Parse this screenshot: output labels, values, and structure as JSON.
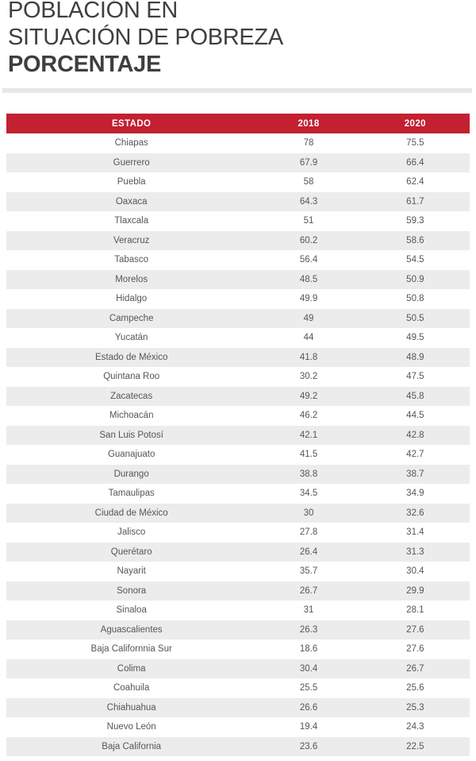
{
  "title": {
    "line1": "POBLACIÓN EN",
    "line2": "SITUACIÓN DE POBREZA",
    "line3": "PORCENTAJE"
  },
  "colors": {
    "header_bg": "#c32031",
    "header_text": "#ffffff",
    "stripe": "#ececec",
    "cell_text": "#55565a",
    "title_color": "#3f3f3f",
    "divider": "#e8e7e4"
  },
  "chart_data": {
    "type": "table",
    "title": "POBLACIÓN EN SITUACIÓN DE POBREZA — PORCENTAJE",
    "columns": [
      "ESTADO",
      "2018",
      "2020"
    ],
    "rows": [
      [
        "Chiapas",
        78,
        75.5
      ],
      [
        "Guerrero",
        67.9,
        66.4
      ],
      [
        "Puebla",
        58,
        62.4
      ],
      [
        "Oaxaca",
        64.3,
        61.7
      ],
      [
        "Tlaxcala",
        51,
        59.3
      ],
      [
        "Veracruz",
        60.2,
        58.6
      ],
      [
        "Tabasco",
        56.4,
        54.5
      ],
      [
        "Morelos",
        48.5,
        50.9
      ],
      [
        "Hidalgo",
        49.9,
        50.8
      ],
      [
        "Campeche",
        49,
        50.5
      ],
      [
        "Yucatán",
        44,
        49.5
      ],
      [
        "Estado de México",
        41.8,
        48.9
      ],
      [
        "Quintana Roo",
        30.2,
        47.5
      ],
      [
        "Zacatecas",
        49.2,
        45.8
      ],
      [
        "Michoacán",
        46.2,
        44.5
      ],
      [
        "San Luis Potosí",
        42.1,
        42.8
      ],
      [
        "Guanajuato",
        41.5,
        42.7
      ],
      [
        "Durango",
        38.8,
        38.7
      ],
      [
        "Tamaulipas",
        34.5,
        34.9
      ],
      [
        "Ciudad de México",
        30,
        32.6
      ],
      [
        "Jalisco",
        27.8,
        31.4
      ],
      [
        "Querétaro",
        26.4,
        31.3
      ],
      [
        "Nayarit",
        35.7,
        30.4
      ],
      [
        "Sonora",
        26.7,
        29.9
      ],
      [
        "Sinaloa",
        31,
        28.1
      ],
      [
        "Aguascalientes",
        26.3,
        27.6
      ],
      [
        "Baja Californnia Sur",
        18.6,
        27.6
      ],
      [
        "Colima",
        30.4,
        26.7
      ],
      [
        "Coahuila",
        25.5,
        25.6
      ],
      [
        "Chiahuahua",
        26.6,
        25.3
      ],
      [
        "Nuevo León",
        19.4,
        24.3
      ],
      [
        "Baja California",
        23.6,
        22.5
      ]
    ]
  }
}
